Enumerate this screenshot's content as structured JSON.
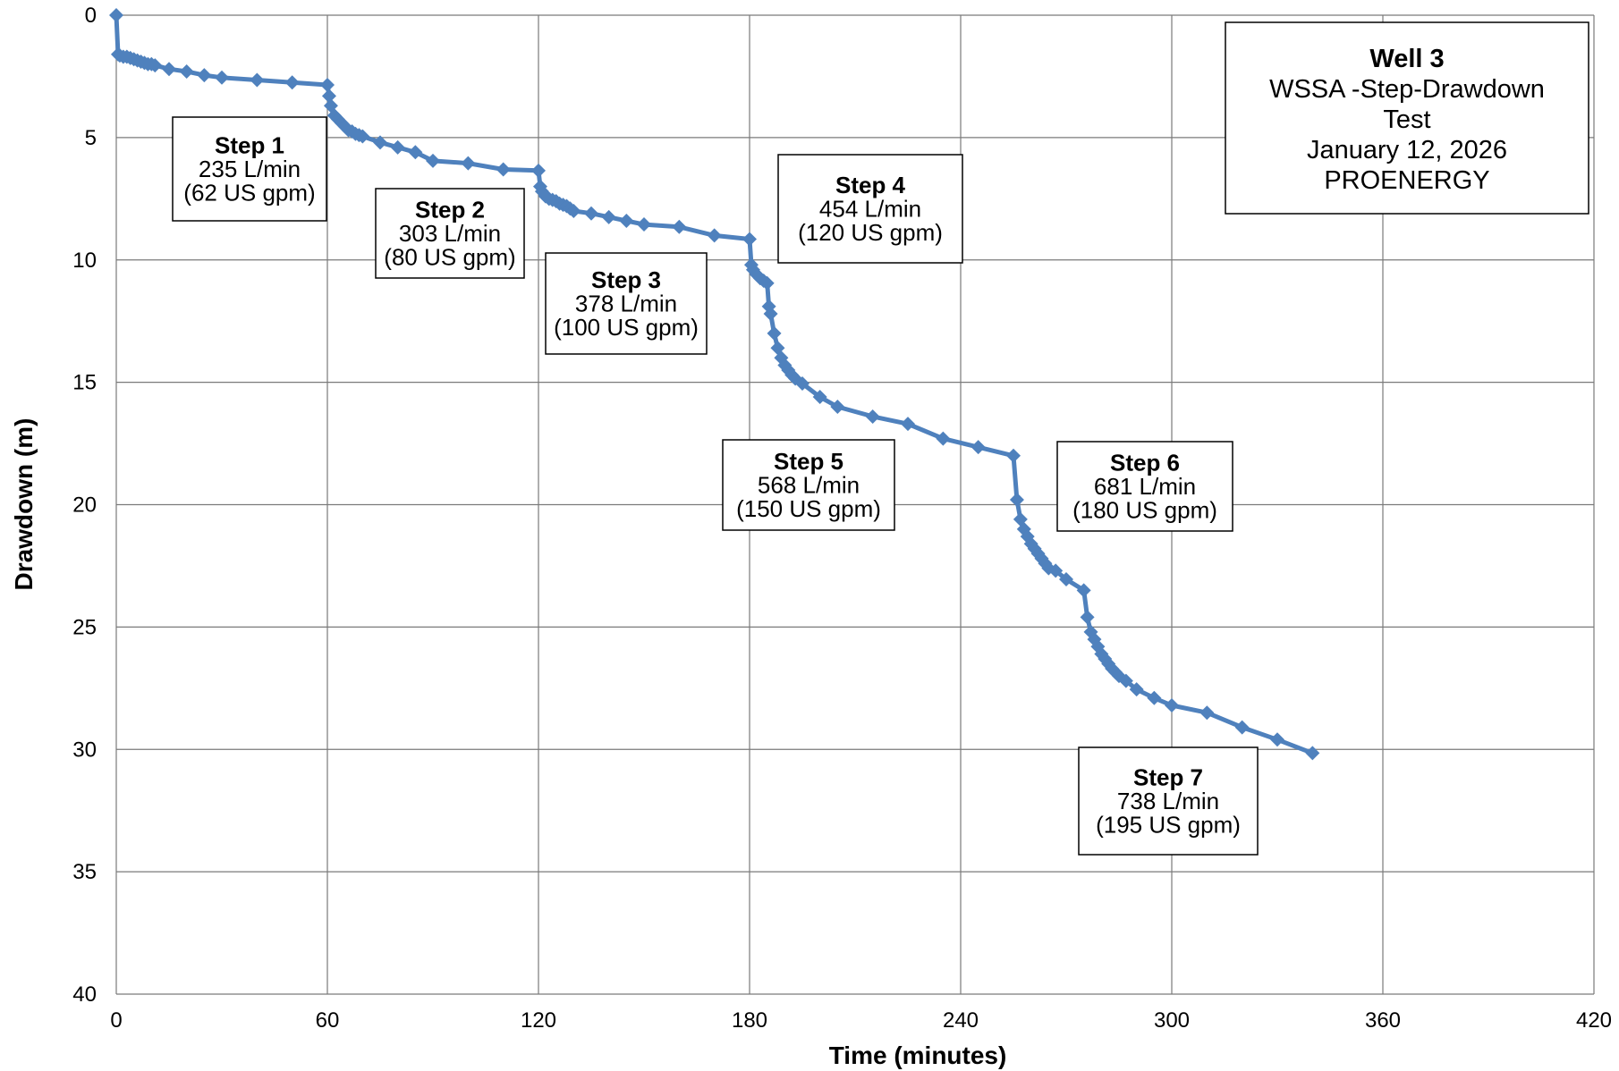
{
  "chart_data": {
    "type": "line",
    "title": [
      "Well 3",
      "WSSA -Step-Drawdown",
      "Test",
      "January 12, 2026",
      "PROENERGY"
    ],
    "xlabel": "Time (minutes)",
    "ylabel": "Drawdown (m)",
    "xlim": [
      0,
      420
    ],
    "ylim": [
      0,
      40
    ],
    "y_inverted": true,
    "x_ticks": [
      0,
      60,
      120,
      180,
      240,
      300,
      360,
      420
    ],
    "y_ticks": [
      0,
      5,
      10,
      15,
      20,
      25,
      30,
      35,
      40
    ],
    "grid": true,
    "series": [
      {
        "color": "#4f81bd",
        "marker": "diamond",
        "x": [
          0,
          0.5,
          1,
          2,
          3,
          4,
          5,
          6,
          7,
          8,
          9,
          10,
          11,
          15,
          20,
          25,
          30,
          40,
          50,
          60,
          60.5,
          61,
          62,
          63,
          64,
          65,
          66,
          67,
          68,
          69,
          70,
          75,
          80,
          85,
          90,
          100,
          110,
          120,
          120.5,
          121,
          122,
          123,
          124,
          125,
          126,
          127,
          128,
          129,
          130,
          135,
          140,
          145,
          150,
          160,
          170,
          180,
          180.5,
          181,
          182,
          183,
          184,
          185,
          185.5,
          186,
          187,
          188,
          189,
          190,
          191,
          192,
          193,
          195,
          200,
          205,
          215,
          225,
          235,
          245,
          255,
          256,
          257,
          258,
          259,
          260,
          261,
          262,
          263,
          264,
          265,
          267,
          270,
          275,
          276,
          277,
          278,
          279,
          280,
          281,
          282,
          283,
          284,
          285,
          287,
          290,
          295,
          300,
          310,
          320,
          330,
          340
        ],
        "y": [
          0,
          1.6,
          1.65,
          1.7,
          1.7,
          1.75,
          1.8,
          1.85,
          1.9,
          1.95,
          2.0,
          2.0,
          2.05,
          2.2,
          2.3,
          2.45,
          2.55,
          2.65,
          2.75,
          2.85,
          3.3,
          3.7,
          4.1,
          4.25,
          4.4,
          4.55,
          4.7,
          4.75,
          4.85,
          4.9,
          4.95,
          5.2,
          5.4,
          5.6,
          5.95,
          6.05,
          6.3,
          6.35,
          7.0,
          7.2,
          7.4,
          7.5,
          7.55,
          7.6,
          7.7,
          7.75,
          7.8,
          7.9,
          8.0,
          8.1,
          8.25,
          8.4,
          8.55,
          8.65,
          9.0,
          9.15,
          10.2,
          10.4,
          10.6,
          10.75,
          10.85,
          10.95,
          11.9,
          12.2,
          13.0,
          13.6,
          14.0,
          14.3,
          14.5,
          14.7,
          14.85,
          15.05,
          15.6,
          16.0,
          16.4,
          16.7,
          17.3,
          17.65,
          18.0,
          19.8,
          20.6,
          21.0,
          21.3,
          21.6,
          21.8,
          22.0,
          22.2,
          22.4,
          22.6,
          22.7,
          23.05,
          23.5,
          24.6,
          25.2,
          25.5,
          25.8,
          26.1,
          26.3,
          26.5,
          26.7,
          26.85,
          27.0,
          27.2,
          27.55,
          27.9,
          28.2,
          28.5,
          29.1,
          29.6,
          30.15
        ]
      }
    ],
    "annotations": [
      {
        "name": "step-1",
        "lines": [
          "Step 1",
          "235 L/min",
          "(62 US gpm)"
        ]
      },
      {
        "name": "step-2",
        "lines": [
          "Step 2",
          "303 L/min",
          "(80 US gpm)"
        ]
      },
      {
        "name": "step-3",
        "lines": [
          "Step 3",
          "378 L/min",
          "(100 US gpm)"
        ]
      },
      {
        "name": "step-4",
        "lines": [
          "Step 4",
          "454 L/min",
          "(120 US gpm)"
        ]
      },
      {
        "name": "step-5",
        "lines": [
          "Step 5",
          "568 L/min",
          "(150 US gpm)"
        ]
      },
      {
        "name": "step-6",
        "lines": [
          "Step 6",
          "681 L/min",
          "(180 US gpm)"
        ]
      },
      {
        "name": "step-7",
        "lines": [
          "Step 7",
          "738 L/min",
          "(195 US gpm)"
        ]
      }
    ]
  }
}
